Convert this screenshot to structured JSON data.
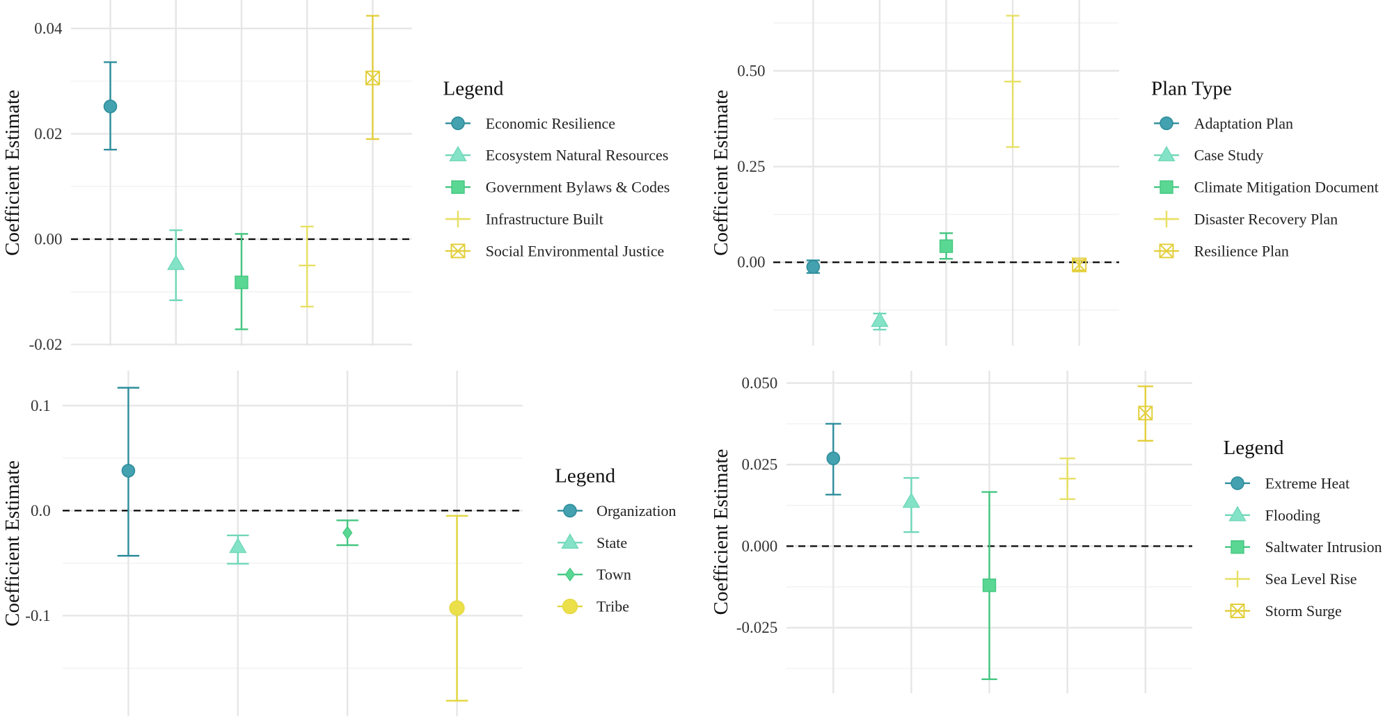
{
  "chart_data": [
    {
      "type": "scatter",
      "error_bars": true,
      "grid": true,
      "legend_position": "right",
      "ylabel": "Coefficient Estimate",
      "legend_title": "Legend",
      "ylim": [
        -0.0202,
        0.0454
      ],
      "yticks": [
        {
          "value": 0.04,
          "label": "0.04"
        },
        {
          "value": 0.02,
          "label": "0.02"
        },
        {
          "value": 0.0,
          "label": "0.00"
        },
        {
          "value": -0.02,
          "label": "-0.02"
        }
      ],
      "yminor": [
        0.03,
        0.01,
        -0.01
      ],
      "reference_line": 0,
      "series": [
        {
          "name": "Economic Resilience",
          "estimate": 0.0252,
          "lower": 0.017,
          "upper": 0.0336,
          "shape": "circle",
          "color": "#44a2b0",
          "line_color": "#2d8d9b"
        },
        {
          "name": "Ecosystem Natural Resources",
          "estimate": -0.0047,
          "lower": -0.0116,
          "upper": 0.0017,
          "shape": "triangle",
          "color": "#84e3c7",
          "line_color": "#6fd7b8"
        },
        {
          "name": "Government Bylaws & Codes",
          "estimate": -0.0082,
          "lower": -0.0171,
          "upper": 0.001,
          "shape": "square",
          "color": "#5ad793",
          "line_color": "#44c680"
        },
        {
          "name": "Infrastructure Built",
          "estimate": -0.005,
          "lower": -0.0128,
          "upper": 0.0024,
          "shape": "plus",
          "color": "#e7df63",
          "line_color": "#e7df63"
        },
        {
          "name": "Social Environmental Justice",
          "estimate": 0.0306,
          "lower": 0.019,
          "upper": 0.0424,
          "shape": "square-cross",
          "color": "#e3cf3c",
          "line_color": "#e3cf3c"
        }
      ]
    },
    {
      "type": "scatter",
      "error_bars": true,
      "grid": true,
      "legend_position": "right",
      "ylabel": "Coefficient Estimate",
      "legend_title": "Plan Type",
      "ylim": [
        -0.2176,
        0.685
      ],
      "yticks": [
        {
          "value": 0.5,
          "label": "0.50"
        },
        {
          "value": 0.25,
          "label": "0.25"
        },
        {
          "value": 0.0,
          "label": "0.00"
        }
      ],
      "yminor": [
        0.625,
        0.375,
        0.125,
        -0.125
      ],
      "reference_line": 0,
      "series": [
        {
          "name": "Adaptation Plan",
          "estimate": -0.012,
          "lower": -0.028,
          "upper": 0.005,
          "shape": "circle",
          "color": "#44a2b0",
          "line_color": "#2d8d9b"
        },
        {
          "name": "Case Study",
          "estimate": -0.153,
          "lower": -0.176,
          "upper": -0.134,
          "shape": "triangle",
          "color": "#84e3c7",
          "line_color": "#6fd7b8"
        },
        {
          "name": "Climate Mitigation Document",
          "estimate": 0.042,
          "lower": 0.009,
          "upper": 0.076,
          "shape": "square",
          "color": "#5ad793",
          "line_color": "#44c680"
        },
        {
          "name": "Disaster Recovery Plan",
          "estimate": 0.472,
          "lower": 0.301,
          "upper": 0.644,
          "shape": "plus",
          "color": "#e7df63",
          "line_color": "#e7df63"
        },
        {
          "name": "Resilience Plan",
          "estimate": -0.007,
          "lower": -0.021,
          "upper": 0.005,
          "shape": "square-cross",
          "color": "#e3cf3c",
          "line_color": "#e3cf3c"
        }
      ]
    },
    {
      "type": "scatter",
      "error_bars": true,
      "grid": true,
      "legend_position": "right",
      "ylabel": "Coefficient Estimate",
      "legend_title": "Legend",
      "ylim": [
        -0.1958,
        0.1333
      ],
      "yticks": [
        {
          "value": 0.1,
          "label": "0.1"
        },
        {
          "value": 0.0,
          "label": "0.0"
        },
        {
          "value": -0.1,
          "label": "-0.1"
        }
      ],
      "yminor": [
        0.05,
        -0.05,
        -0.15
      ],
      "reference_line": 0,
      "series": [
        {
          "name": "Organization",
          "estimate": 0.038,
          "lower": -0.043,
          "upper": 0.117,
          "shape": "circle",
          "color": "#44a2b0",
          "line_color": "#2d8d9b"
        },
        {
          "name": "State",
          "estimate": -0.0346,
          "lower": -0.0506,
          "upper": -0.0236,
          "shape": "triangle",
          "color": "#84e3c7",
          "line_color": "#6fd7b8"
        },
        {
          "name": "Town",
          "estimate": -0.0211,
          "lower": -0.0329,
          "upper": -0.0093,
          "shape": "diamond",
          "color": "#5ad793",
          "line_color": "#44c680"
        },
        {
          "name": "Tribe",
          "estimate": -0.0928,
          "lower": -0.181,
          "upper": -0.005,
          "shape": "solid-circle",
          "color": "#ebe04a",
          "line_color": "#e2d63c"
        }
      ]
    },
    {
      "type": "scatter",
      "error_bars": true,
      "grid": true,
      "legend_position": "right",
      "ylabel": "Coefficient Estimate",
      "legend_title": "Legend",
      "ylim": [
        -0.0451,
        0.0538
      ],
      "yticks": [
        {
          "value": 0.05,
          "label": "0.050"
        },
        {
          "value": 0.025,
          "label": "0.025"
        },
        {
          "value": 0.0,
          "label": "0.000"
        },
        {
          "value": -0.025,
          "label": "-0.025"
        }
      ],
      "yminor": [
        0.0375,
        0.0125,
        -0.0125,
        -0.0375
      ],
      "reference_line": 0,
      "series": [
        {
          "name": "Extreme Heat",
          "estimate": 0.0269,
          "lower": 0.0158,
          "upper": 0.0375,
          "shape": "circle",
          "color": "#44a2b0",
          "line_color": "#2d8d9b"
        },
        {
          "name": "Flooding",
          "estimate": 0.0136,
          "lower": 0.0043,
          "upper": 0.0209,
          "shape": "triangle",
          "color": "#84e3c7",
          "line_color": "#6fd7b8"
        },
        {
          "name": "Saltwater Intrusion",
          "estimate": -0.012,
          "lower": -0.0408,
          "upper": 0.0166,
          "shape": "square",
          "color": "#5ad793",
          "line_color": "#44c680"
        },
        {
          "name": "Sea Level Rise",
          "estimate": 0.0207,
          "lower": 0.0144,
          "upper": 0.0269,
          "shape": "plus",
          "color": "#e7df63",
          "line_color": "#e7df63"
        },
        {
          "name": "Storm Surge",
          "estimate": 0.0408,
          "lower": 0.0323,
          "upper": 0.049,
          "shape": "square-cross",
          "color": "#e3cf3c",
          "line_color": "#e3cf3c"
        }
      ]
    }
  ]
}
